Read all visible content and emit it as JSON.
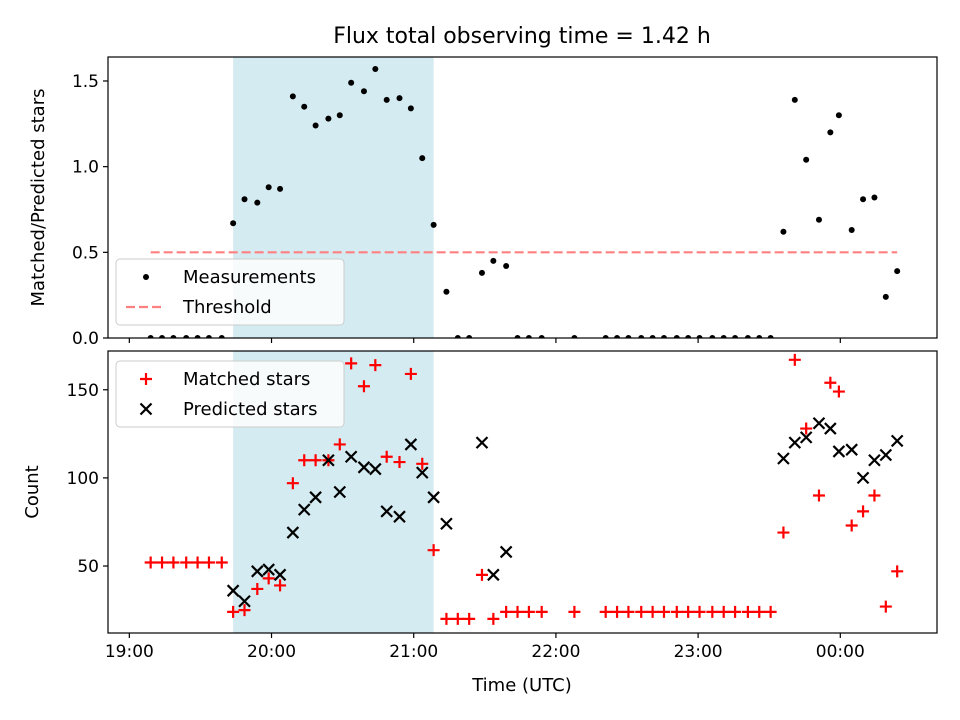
{
  "chart_data": {
    "title": "Flux total observing time = 1.42 h",
    "xlabel": "Time (UTC)",
    "x_unit": "hours (UTC, continuing past midnight)",
    "x_range": [
      18.85,
      24.68
    ],
    "x_ticks": [
      {
        "value": 19,
        "label": "19:00"
      },
      {
        "value": 20,
        "label": "20:00"
      },
      {
        "value": 21,
        "label": "21:00"
      },
      {
        "value": 22,
        "label": "22:00"
      },
      {
        "value": 23,
        "label": "23:00"
      },
      {
        "value": 24,
        "label": "00:00"
      }
    ],
    "shaded_interval": {
      "x": [
        19.73,
        21.14
      ],
      "color": "#d4ebf1"
    },
    "panels": [
      {
        "type": "scatter",
        "ylabel": "Matched/Predicted stars",
        "ylim": [
          0,
          1.64
        ],
        "y_ticks": [
          0.0,
          0.5,
          1.0,
          1.5
        ],
        "y_tick_labels": [
          "0.0",
          "0.5",
          "1.0",
          "1.5"
        ],
        "legend_position": "lower-left",
        "series": [
          {
            "name": "Measurements",
            "marker": "dot",
            "color": "#000000",
            "points": [
              [
                19.15,
                0
              ],
              [
                19.23,
                0
              ],
              [
                19.31,
                0
              ],
              [
                19.4,
                0
              ],
              [
                19.48,
                0
              ],
              [
                19.56,
                0
              ],
              [
                19.65,
                0
              ],
              [
                19.73,
                0.67
              ],
              [
                19.81,
                0.81
              ],
              [
                19.9,
                0.79
              ],
              [
                19.98,
                0.88
              ],
              [
                20.06,
                0.87
              ],
              [
                20.15,
                1.41
              ],
              [
                20.23,
                1.35
              ],
              [
                20.31,
                1.24
              ],
              [
                20.4,
                1.28
              ],
              [
                20.48,
                1.3
              ],
              [
                20.56,
                1.49
              ],
              [
                20.65,
                1.44
              ],
              [
                20.73,
                1.57
              ],
              [
                20.81,
                1.39
              ],
              [
                20.9,
                1.4
              ],
              [
                20.98,
                1.34
              ],
              [
                21.06,
                1.05
              ],
              [
                21.14,
                0.66
              ],
              [
                21.23,
                0.27
              ],
              [
                21.31,
                0
              ],
              [
                21.39,
                0
              ],
              [
                21.48,
                0.38
              ],
              [
                21.56,
                0.45
              ],
              [
                21.65,
                0.42
              ],
              [
                21.73,
                0
              ],
              [
                21.81,
                0
              ],
              [
                21.9,
                0
              ],
              [
                22.13,
                0
              ],
              [
                22.35,
                0
              ],
              [
                22.43,
                0
              ],
              [
                22.51,
                0
              ],
              [
                22.6,
                0
              ],
              [
                22.68,
                0
              ],
              [
                22.76,
                0
              ],
              [
                22.85,
                0
              ],
              [
                22.93,
                0
              ],
              [
                23.01,
                0
              ],
              [
                23.1,
                0
              ],
              [
                23.18,
                0
              ],
              [
                23.26,
                0
              ],
              [
                23.35,
                0
              ],
              [
                23.43,
                0
              ],
              [
                23.51,
                0
              ],
              [
                23.6,
                0.62
              ],
              [
                23.68,
                1.39
              ],
              [
                23.76,
                1.04
              ],
              [
                23.85,
                0.69
              ],
              [
                23.93,
                1.2
              ],
              [
                23.99,
                1.3
              ],
              [
                24.08,
                0.63
              ],
              [
                24.16,
                0.81
              ],
              [
                24.24,
                0.82
              ],
              [
                24.32,
                0.24
              ],
              [
                24.4,
                0.39
              ]
            ]
          },
          {
            "name": "Threshold",
            "marker": "dashed-line",
            "color": "#ff8080",
            "x": [
              19.15,
              24.4
            ],
            "y": [
              0.5,
              0.5
            ]
          }
        ]
      },
      {
        "type": "scatter",
        "ylabel": "Count",
        "ylim": [
          12,
          172
        ],
        "y_ticks": [
          50,
          100,
          150
        ],
        "y_tick_labels": [
          "50",
          "100",
          "150"
        ],
        "legend_position": "upper-left",
        "series": [
          {
            "name": "Matched stars",
            "marker": "plus",
            "color": "#ff0000",
            "points": [
              [
                19.15,
                52
              ],
              [
                19.23,
                52
              ],
              [
                19.31,
                52
              ],
              [
                19.4,
                52
              ],
              [
                19.48,
                52
              ],
              [
                19.56,
                52
              ],
              [
                19.65,
                52
              ],
              [
                19.73,
                24
              ],
              [
                19.81,
                25
              ],
              [
                19.9,
                37
              ],
              [
                19.98,
                43
              ],
              [
                20.06,
                39
              ],
              [
                20.15,
                97
              ],
              [
                20.23,
                110
              ],
              [
                20.31,
                110
              ],
              [
                20.4,
                110
              ],
              [
                20.48,
                119
              ],
              [
                20.56,
                165
              ],
              [
                20.65,
                152
              ],
              [
                20.73,
                164
              ],
              [
                20.81,
                112
              ],
              [
                20.9,
                109
              ],
              [
                20.98,
                159
              ],
              [
                21.06,
                108
              ],
              [
                21.14,
                59
              ],
              [
                21.23,
                20
              ],
              [
                21.31,
                20
              ],
              [
                21.39,
                20
              ],
              [
                21.48,
                45
              ],
              [
                21.56,
                20
              ],
              [
                21.65,
                24
              ],
              [
                21.73,
                24
              ],
              [
                21.81,
                24
              ],
              [
                21.9,
                24
              ],
              [
                22.13,
                24
              ],
              [
                22.35,
                24
              ],
              [
                22.43,
                24
              ],
              [
                22.51,
                24
              ],
              [
                22.6,
                24
              ],
              [
                22.68,
                24
              ],
              [
                22.76,
                24
              ],
              [
                22.85,
                24
              ],
              [
                22.93,
                24
              ],
              [
                23.01,
                24
              ],
              [
                23.1,
                24
              ],
              [
                23.18,
                24
              ],
              [
                23.26,
                24
              ],
              [
                23.35,
                24
              ],
              [
                23.43,
                24
              ],
              [
                23.51,
                24
              ],
              [
                23.6,
                69
              ],
              [
                23.68,
                167
              ],
              [
                23.76,
                128
              ],
              [
                23.85,
                90
              ],
              [
                23.93,
                154
              ],
              [
                23.99,
                149
              ],
              [
                24.08,
                73
              ],
              [
                24.16,
                81
              ],
              [
                24.24,
                90
              ],
              [
                24.32,
                27
              ],
              [
                24.4,
                47
              ]
            ]
          },
          {
            "name": "Predicted stars",
            "marker": "x",
            "color": "#000000",
            "points": [
              [
                19.73,
                36
              ],
              [
                19.81,
                30
              ],
              [
                19.9,
                47
              ],
              [
                19.98,
                48
              ],
              [
                20.06,
                45
              ],
              [
                20.15,
                69
              ],
              [
                20.23,
                82
              ],
              [
                20.31,
                89
              ],
              [
                20.4,
                110
              ],
              [
                20.48,
                92
              ],
              [
                20.56,
                112
              ],
              [
                20.65,
                106
              ],
              [
                20.73,
                105
              ],
              [
                20.81,
                81
              ],
              [
                20.9,
                78
              ],
              [
                20.98,
                119
              ],
              [
                21.06,
                103
              ],
              [
                21.14,
                89
              ],
              [
                21.23,
                74
              ],
              [
                21.48,
                120
              ],
              [
                21.56,
                45
              ],
              [
                21.65,
                58
              ],
              [
                23.6,
                111
              ],
              [
                23.68,
                120
              ],
              [
                23.76,
                123
              ],
              [
                23.85,
                131
              ],
              [
                23.93,
                128
              ],
              [
                23.99,
                115
              ],
              [
                24.08,
                116
              ],
              [
                24.16,
                100
              ],
              [
                24.24,
                110
              ],
              [
                24.32,
                113
              ],
              [
                24.4,
                121
              ]
            ]
          }
        ]
      }
    ]
  }
}
